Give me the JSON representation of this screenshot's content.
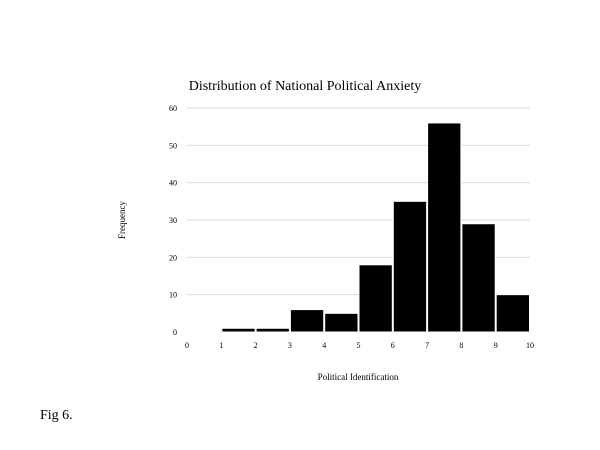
{
  "chart_data": {
    "type": "bar",
    "title": "Distribution of National Political Anxiety",
    "xlabel": "Political Identification",
    "ylabel": "Frequency",
    "bins": [
      [
        0,
        1
      ],
      [
        1,
        2
      ],
      [
        2,
        3
      ],
      [
        3,
        4
      ],
      [
        4,
        5
      ],
      [
        5,
        6
      ],
      [
        6,
        7
      ],
      [
        7,
        8
      ],
      [
        8,
        9
      ],
      [
        9,
        10
      ]
    ],
    "values": [
      0,
      1,
      1,
      6,
      5,
      18,
      35,
      56,
      29,
      10
    ],
    "xlim": [
      0,
      10
    ],
    "ylim": [
      0,
      60
    ],
    "xticks": [
      "0",
      "1",
      "2",
      "3",
      "4",
      "5",
      "6",
      "7",
      "8",
      "9",
      "10"
    ],
    "yticks": [
      "0",
      "10",
      "20",
      "30",
      "40",
      "50",
      "60"
    ],
    "grid": "horizontal",
    "bar_color": "#000000",
    "grid_color": "#d9d9d9"
  },
  "caption": "Fig 6."
}
